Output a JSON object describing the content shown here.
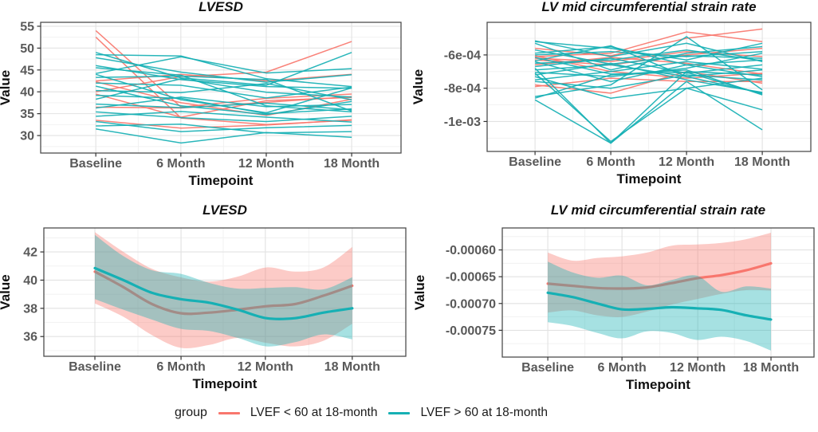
{
  "figure": {
    "description": "2x2 panel figure of longitudinal cardiac measures by LVEF group",
    "x_axis_label": "Timepoint",
    "y_axis_label": "Value"
  },
  "colors": {
    "group_lt60": "#f8766d",
    "group_gt60": "#16b0b4",
    "ribbon_alpha": 0.38,
    "grid_major": "#e2e2e2",
    "grid_minor": "#f0f0f0",
    "panel_border": "#4d4d4d",
    "tick_mark": "#333333",
    "tick_label": "#595959",
    "title_text": "#111111"
  },
  "legend": {
    "title": "group",
    "items": [
      {
        "id": "lt60",
        "label": "LVEF < 60 at 18-month",
        "color": "#f8766d"
      },
      {
        "id": "gt60",
        "label": "LVEF > 60 at 18-month",
        "color": "#16b0b4"
      }
    ]
  },
  "chart_data": [
    {
      "id": "lvesd-individual",
      "type": "line",
      "title": "LVESD",
      "xlabel": "Timepoint",
      "ylabel": "Value",
      "x_categories": [
        "Baseline",
        "6 Month",
        "12 Month",
        "18 Month"
      ],
      "x_months": [
        0,
        6,
        12,
        18
      ],
      "ylim": [
        26.0,
        55.9
      ],
      "yticks": [
        30,
        35,
        40,
        45,
        50,
        55
      ],
      "ytick_labels": [
        "30",
        "35",
        "40",
        "45",
        "50",
        "55"
      ],
      "grid": true,
      "legend_position": "none",
      "series": [
        {
          "group": "lt60",
          "values": [
            54.0,
            36.5,
            38.5,
            39.5
          ]
        },
        {
          "group": "lt60",
          "values": [
            52.5,
            34.0,
            32.5,
            33.5
          ]
        },
        {
          "group": "lt60",
          "values": [
            40.0,
            43.5,
            44.5,
            51.5
          ]
        },
        {
          "group": "lt60",
          "values": [
            42.5,
            44.0,
            42.5,
            44.0
          ]
        },
        {
          "group": "lt60",
          "values": [
            39.5,
            34.2,
            38.0,
            38.7
          ]
        },
        {
          "group": "lt60",
          "values": [
            36.5,
            36.3,
            37.6,
            38.9
          ]
        },
        {
          "group": "lt60",
          "values": [
            33.5,
            31.7,
            32.4,
            33.6
          ]
        },
        {
          "group": "lt60",
          "values": [
            42.3,
            37.5,
            34.6,
            38.3
          ]
        },
        {
          "group": "gt60",
          "values": [
            48.5,
            48.2,
            43.0,
            41.2
          ]
        },
        {
          "group": "gt60",
          "values": [
            44.2,
            48.0,
            44.3,
            45.3
          ]
        },
        {
          "group": "gt60",
          "values": [
            49.0,
            43.2,
            41.5,
            49.0
          ]
        },
        {
          "group": "gt60",
          "values": [
            31.5,
            28.3,
            30.7,
            29.6
          ]
        },
        {
          "group": "gt60",
          "values": [
            32.2,
            32.6,
            30.6,
            30.9
          ]
        },
        {
          "group": "gt60",
          "values": [
            46.0,
            42.8,
            41.2,
            40.8
          ]
        },
        {
          "group": "gt60",
          "values": [
            45.5,
            43.8,
            36.8,
            35.4
          ]
        },
        {
          "group": "gt60",
          "values": [
            44.0,
            38.2,
            35.2,
            40.9
          ]
        },
        {
          "group": "gt60",
          "values": [
            43.3,
            43.6,
            42.8,
            35.6
          ]
        },
        {
          "group": "gt60",
          "values": [
            42.0,
            41.5,
            38.6,
            41.1
          ]
        },
        {
          "group": "gt60",
          "values": [
            41.3,
            36.8,
            34.8,
            37.8
          ]
        },
        {
          "group": "gt60",
          "values": [
            40.3,
            39.8,
            41.9,
            38.2
          ]
        },
        {
          "group": "gt60",
          "values": [
            39.2,
            38.5,
            35.0,
            36.1
          ]
        },
        {
          "group": "gt60",
          "values": [
            38.3,
            43.0,
            39.9,
            38.8
          ]
        },
        {
          "group": "gt60",
          "values": [
            37.2,
            36.4,
            37.4,
            35.9
          ]
        },
        {
          "group": "gt60",
          "values": [
            36.3,
            38.8,
            36.6,
            37.1
          ]
        },
        {
          "group": "gt60",
          "values": [
            35.4,
            34.1,
            33.2,
            34.4
          ]
        },
        {
          "group": "gt60",
          "values": [
            34.4,
            35.5,
            34.2,
            33.1
          ]
        },
        {
          "group": "gt60",
          "values": [
            33.2,
            30.9,
            31.8,
            32.3
          ]
        },
        {
          "group": "gt60",
          "values": [
            47.8,
            44.5,
            42.2,
            43.9
          ]
        }
      ]
    },
    {
      "id": "strain-individual",
      "type": "line",
      "title": "LV mid circumferential strain rate",
      "xlabel": "Timepoint",
      "ylabel": "Value",
      "x_categories": [
        "Baseline",
        "6 Month",
        "12 Month",
        "18 Month"
      ],
      "x_months": [
        0,
        6,
        12,
        18
      ],
      "ylim": [
        -0.00118,
        -0.000404
      ],
      "yticks": [
        -0.001,
        -0.0008,
        -0.0006
      ],
      "ytick_labels": [
        "-1e-03",
        "-8e-04",
        "-6e-04"
      ],
      "grid": true,
      "legend_position": "none",
      "series": [
        {
          "group": "lt60",
          "values": [
            -0.00056,
            -0.000605,
            -0.0005,
            -0.000444
          ]
        },
        {
          "group": "lt60",
          "values": [
            -0.00061,
            -0.00059,
            -0.000462,
            -0.00052
          ]
        },
        {
          "group": "lt60",
          "values": [
            -0.00063,
            -0.00066,
            -0.0006,
            -0.00056
          ]
        },
        {
          "group": "lt60",
          "values": [
            -0.000605,
            -0.0007,
            -0.00074,
            -0.00071
          ]
        },
        {
          "group": "lt60",
          "values": [
            -0.00079,
            -0.00074,
            -0.00076,
            -0.00076
          ]
        },
        {
          "group": "lt60",
          "values": [
            -0.00078,
            -0.00083,
            -0.0007,
            -0.00077
          ]
        },
        {
          "group": "lt60",
          "values": [
            -0.00062,
            -0.00064,
            -0.00058,
            -0.00061
          ]
        },
        {
          "group": "lt60",
          "values": [
            -0.00066,
            -0.000615,
            -0.00065,
            -0.000715
          ]
        },
        {
          "group": "gt60",
          "values": [
            -0.00052,
            -0.00056,
            -0.00063,
            -0.00053
          ]
        },
        {
          "group": "gt60",
          "values": [
            -0.00053,
            -0.00069,
            -0.00059,
            -0.00055
          ]
        },
        {
          "group": "gt60",
          "values": [
            -0.00059,
            -0.00055,
            -0.00066,
            -0.00063
          ]
        },
        {
          "group": "gt60",
          "values": [
            -0.000635,
            -0.000545,
            -0.00073,
            -0.00083
          ]
        },
        {
          "group": "gt60",
          "values": [
            -0.00065,
            -0.00063,
            -0.00057,
            -0.000635
          ]
        },
        {
          "group": "gt60",
          "values": [
            -0.00069,
            -0.00066,
            -0.00073,
            -0.00069
          ]
        },
        {
          "group": "gt60",
          "values": [
            -0.000705,
            -0.00073,
            -0.00068,
            -0.00059
          ]
        },
        {
          "group": "gt60",
          "values": [
            -0.00072,
            -0.00065,
            -0.00075,
            -0.000825
          ]
        },
        {
          "group": "gt60",
          "values": [
            -0.00075,
            -0.0007,
            -0.00064,
            -0.000685
          ]
        },
        {
          "group": "gt60",
          "values": [
            -0.00076,
            -0.0008,
            -0.00072,
            -0.00075
          ]
        },
        {
          "group": "gt60",
          "values": [
            -0.00086,
            -0.00072,
            -0.00069,
            -0.00084
          ]
        },
        {
          "group": "gt60",
          "values": [
            -0.00087,
            -0.00113,
            -0.0007,
            -0.00072
          ]
        },
        {
          "group": "gt60",
          "values": [
            -0.00068,
            -0.00113,
            -0.00076,
            -0.00105
          ]
        },
        {
          "group": "gt60",
          "values": [
            -0.00071,
            -0.00112,
            -0.0008,
            -0.00093
          ]
        },
        {
          "group": "gt60",
          "values": [
            -0.000515,
            -0.00061,
            -0.00053,
            -0.00064
          ]
        },
        {
          "group": "gt60",
          "values": [
            -0.0006,
            -0.00058,
            -0.00061,
            -0.00058
          ]
        },
        {
          "group": "gt60",
          "values": [
            -0.00064,
            -0.00076,
            -0.00066,
            -0.00073
          ]
        },
        {
          "group": "gt60",
          "values": [
            -0.00073,
            -0.00086,
            -0.0008,
            -0.00074
          ]
        },
        {
          "group": "gt60",
          "values": [
            -0.00067,
            -0.00062,
            -0.00071,
            -0.00066
          ]
        },
        {
          "group": "gt60",
          "values": [
            -0.00057,
            -0.000655,
            -0.000605,
            -0.00062
          ]
        },
        {
          "group": "gt60",
          "values": [
            -0.00085,
            -0.00078,
            -0.00049,
            -0.00081
          ]
        },
        {
          "group": "gt60",
          "values": [
            -0.000615,
            -0.000715,
            -0.000705,
            -0.000835
          ]
        }
      ]
    },
    {
      "id": "lvesd-smooth",
      "type": "area",
      "title": "LVESD",
      "xlabel": "Timepoint",
      "ylabel": "Value",
      "x_categories": [
        "Baseline",
        "6 Month",
        "12 Month",
        "18 Month"
      ],
      "x_months": [
        0,
        6,
        12,
        18
      ],
      "x": [
        0,
        2,
        4,
        6,
        8,
        10,
        12,
        14,
        16,
        18
      ],
      "ylim": [
        34.6,
        43.7
      ],
      "yticks": [
        36,
        38,
        40,
        42
      ],
      "ytick_labels": [
        "36",
        "38",
        "40",
        "42"
      ],
      "grid": true,
      "legend_position": "none",
      "series": [
        {
          "group": "lt60",
          "line": [
            40.6,
            39.5,
            38.3,
            37.65,
            37.7,
            37.9,
            38.15,
            38.3,
            38.9,
            39.6
          ],
          "upper": [
            43.4,
            42.0,
            40.8,
            40.2,
            39.9,
            40.25,
            40.9,
            40.6,
            40.9,
            42.35
          ],
          "lower": [
            38.35,
            37.4,
            36.1,
            35.2,
            35.4,
            35.9,
            35.55,
            35.3,
            35.7,
            36.9
          ]
        },
        {
          "group": "gt60",
          "line": [
            40.85,
            40.0,
            39.1,
            38.65,
            38.4,
            37.9,
            37.3,
            37.3,
            37.7,
            38.0
          ],
          "upper": [
            43.2,
            41.7,
            40.7,
            40.45,
            39.8,
            39.4,
            39.45,
            39.5,
            39.35,
            40.2
          ],
          "lower": [
            38.65,
            37.9,
            37.2,
            36.55,
            36.4,
            35.9,
            35.3,
            35.6,
            36.15,
            35.8
          ]
        }
      ]
    },
    {
      "id": "strain-smooth",
      "type": "area",
      "title": "LV mid circumferential strain rate",
      "xlabel": "Timepoint",
      "ylabel": "Value",
      "x_categories": [
        "Baseline",
        "6 Month",
        "12 Month",
        "18 Month"
      ],
      "x_months": [
        0,
        6,
        12,
        18
      ],
      "x": [
        0,
        2,
        4,
        6,
        8,
        10,
        12,
        14,
        16,
        18
      ],
      "ylim": [
        -0.0008,
        -0.000559
      ],
      "yticks": [
        -0.00075,
        -0.0007,
        -0.00065,
        -0.0006
      ],
      "ytick_labels": [
        "-0.00075",
        "-0.00070",
        "-0.00065",
        "-0.00060"
      ],
      "grid": true,
      "legend_position": "none",
      "series": [
        {
          "group": "lt60",
          "line": [
            -0.000663,
            -0.000667,
            -0.000671,
            -0.000672,
            -0.00067,
            -0.000662,
            -0.000653,
            -0.000647,
            -0.000638,
            -0.000625
          ],
          "upper": [
            -0.000605,
            -0.00062,
            -0.000615,
            -0.000612,
            -0.000605,
            -0.000592,
            -0.00059,
            -0.000587,
            -0.00058,
            -0.000568
          ],
          "lower": [
            -0.000717,
            -0.000713,
            -0.000722,
            -0.000725,
            -0.000715,
            -0.000702,
            -0.000692,
            -0.000682,
            -0.000675,
            -0.000676
          ]
        },
        {
          "group": "gt60",
          "line": [
            -0.00068,
            -0.000688,
            -0.0007,
            -0.000711,
            -0.00071,
            -0.000707,
            -0.000709,
            -0.000712,
            -0.000722,
            -0.00073
          ],
          "upper": [
            -0.000622,
            -0.000642,
            -0.000652,
            -0.000648,
            -0.000666,
            -0.000656,
            -0.000648,
            -0.000678,
            -0.000668,
            -0.000672
          ],
          "lower": [
            -0.000735,
            -0.000742,
            -0.000755,
            -0.000765,
            -0.000752,
            -0.000755,
            -0.000768,
            -0.000762,
            -0.00077,
            -0.000788
          ]
        }
      ]
    }
  ]
}
